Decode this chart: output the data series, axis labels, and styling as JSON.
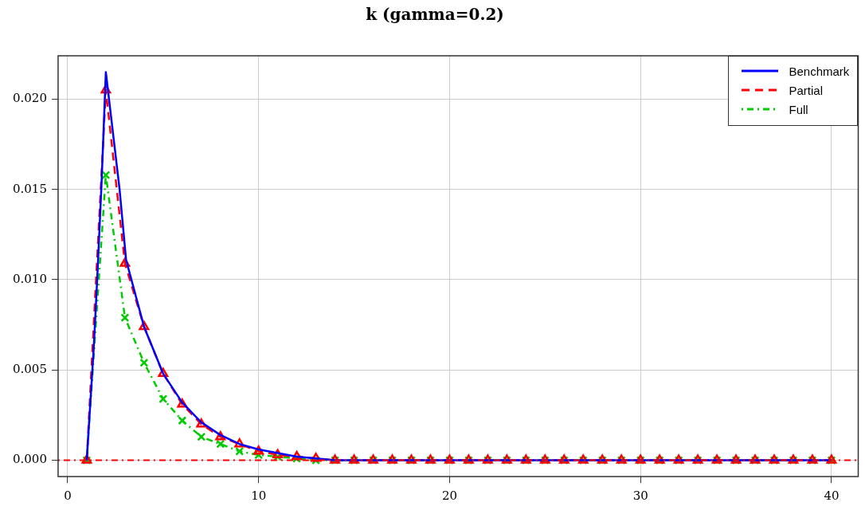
{
  "chart_data": {
    "type": "line",
    "title": "k (gamma=0.2)",
    "xlim": [
      -0.5,
      41.4
    ],
    "xticks": [
      0,
      10,
      20,
      30,
      40
    ],
    "ylim": [
      -0.0009,
      0.0224
    ],
    "yticks": [
      {
        "value": 0,
        "label": "0.000"
      },
      {
        "value": 0.005,
        "label": "0.005"
      },
      {
        "value": 0.01,
        "label": "0.010"
      },
      {
        "value": 0.015,
        "label": "0.015"
      },
      {
        "value": 0.02,
        "label": "0.020"
      }
    ],
    "grid": true,
    "legend": "top right",
    "ref_lines": [
      {
        "axis": "y",
        "value": 0,
        "color": "#ff0000",
        "line_style": "dotted"
      }
    ],
    "series": [
      {
        "name": "Benchmark",
        "color": "#0000ff",
        "marker": "none",
        "line_style": "solid",
        "x": [
          1,
          1.36,
          1.56,
          1.77,
          2,
          2.72,
          3.06,
          4,
          5,
          6,
          7,
          8,
          9,
          10,
          11,
          12,
          13,
          14,
          15,
          16,
          17,
          18,
          19,
          20,
          21,
          22,
          23,
          24,
          25,
          26,
          27,
          28,
          29,
          30,
          31,
          32,
          33,
          34,
          35,
          36,
          37,
          38,
          39,
          40
        ],
        "values": [
          0,
          0.0061,
          0.0103,
          0.0152,
          0.0215,
          0.015,
          0.0111,
          0.0074,
          0.0048,
          0.0032,
          0.0021,
          0.0014,
          0.0009,
          0.0006,
          0.0004,
          0.0002,
          0.0001,
          0,
          0,
          0,
          0,
          0,
          0,
          0,
          0,
          0,
          0,
          0,
          0,
          0,
          0,
          0,
          0,
          0,
          0,
          0,
          0,
          0,
          0,
          0,
          0,
          0,
          0,
          0
        ]
      },
      {
        "name": "Partial",
        "color": "#ff0000",
        "marker": "triangle",
        "line_style": "dashed",
        "x": [
          1,
          2,
          3,
          4,
          5,
          6,
          7,
          8,
          9,
          10,
          11,
          12,
          13,
          14,
          15,
          16,
          17,
          18,
          19,
          20,
          21,
          22,
          23,
          24,
          25,
          26,
          27,
          28,
          29,
          30,
          31,
          32,
          33,
          34,
          35,
          36,
          37,
          38,
          39,
          40
        ],
        "values": [
          0,
          0.0205,
          0.0109,
          0.0074,
          0.0048,
          0.0031,
          0.002,
          0.0013,
          0.0009,
          0.0005,
          0.0003,
          0.0002,
          0.0001,
          0,
          0,
          0,
          0,
          0,
          0,
          0,
          0,
          0,
          0,
          0,
          0,
          0,
          0,
          0,
          0,
          0,
          0,
          0,
          0,
          0,
          0,
          0,
          0,
          0,
          0,
          0
        ]
      },
      {
        "name": "Full",
        "color": "#00cc00",
        "marker": "cross",
        "line_style": "dotted",
        "x": [
          1,
          2,
          3,
          4,
          5,
          6,
          7,
          8,
          9,
          10,
          11,
          12,
          13,
          14,
          15,
          16,
          17,
          18,
          19,
          20,
          21,
          22,
          23,
          24,
          25,
          26,
          27,
          28,
          29,
          30,
          31,
          32,
          33,
          34,
          35,
          36,
          37,
          38,
          39,
          40
        ],
        "values": [
          0,
          0.0158,
          0.0079,
          0.0054,
          0.0034,
          0.0022,
          0.0013,
          0.0009,
          0.0005,
          0.0003,
          0.0002,
          0.0001,
          0,
          0,
          0,
          0,
          0,
          0,
          0,
          0,
          0,
          0,
          0,
          0,
          0,
          0,
          0,
          0,
          0,
          0,
          0,
          0,
          0,
          0,
          0,
          0,
          0,
          0,
          0,
          0
        ]
      }
    ]
  }
}
